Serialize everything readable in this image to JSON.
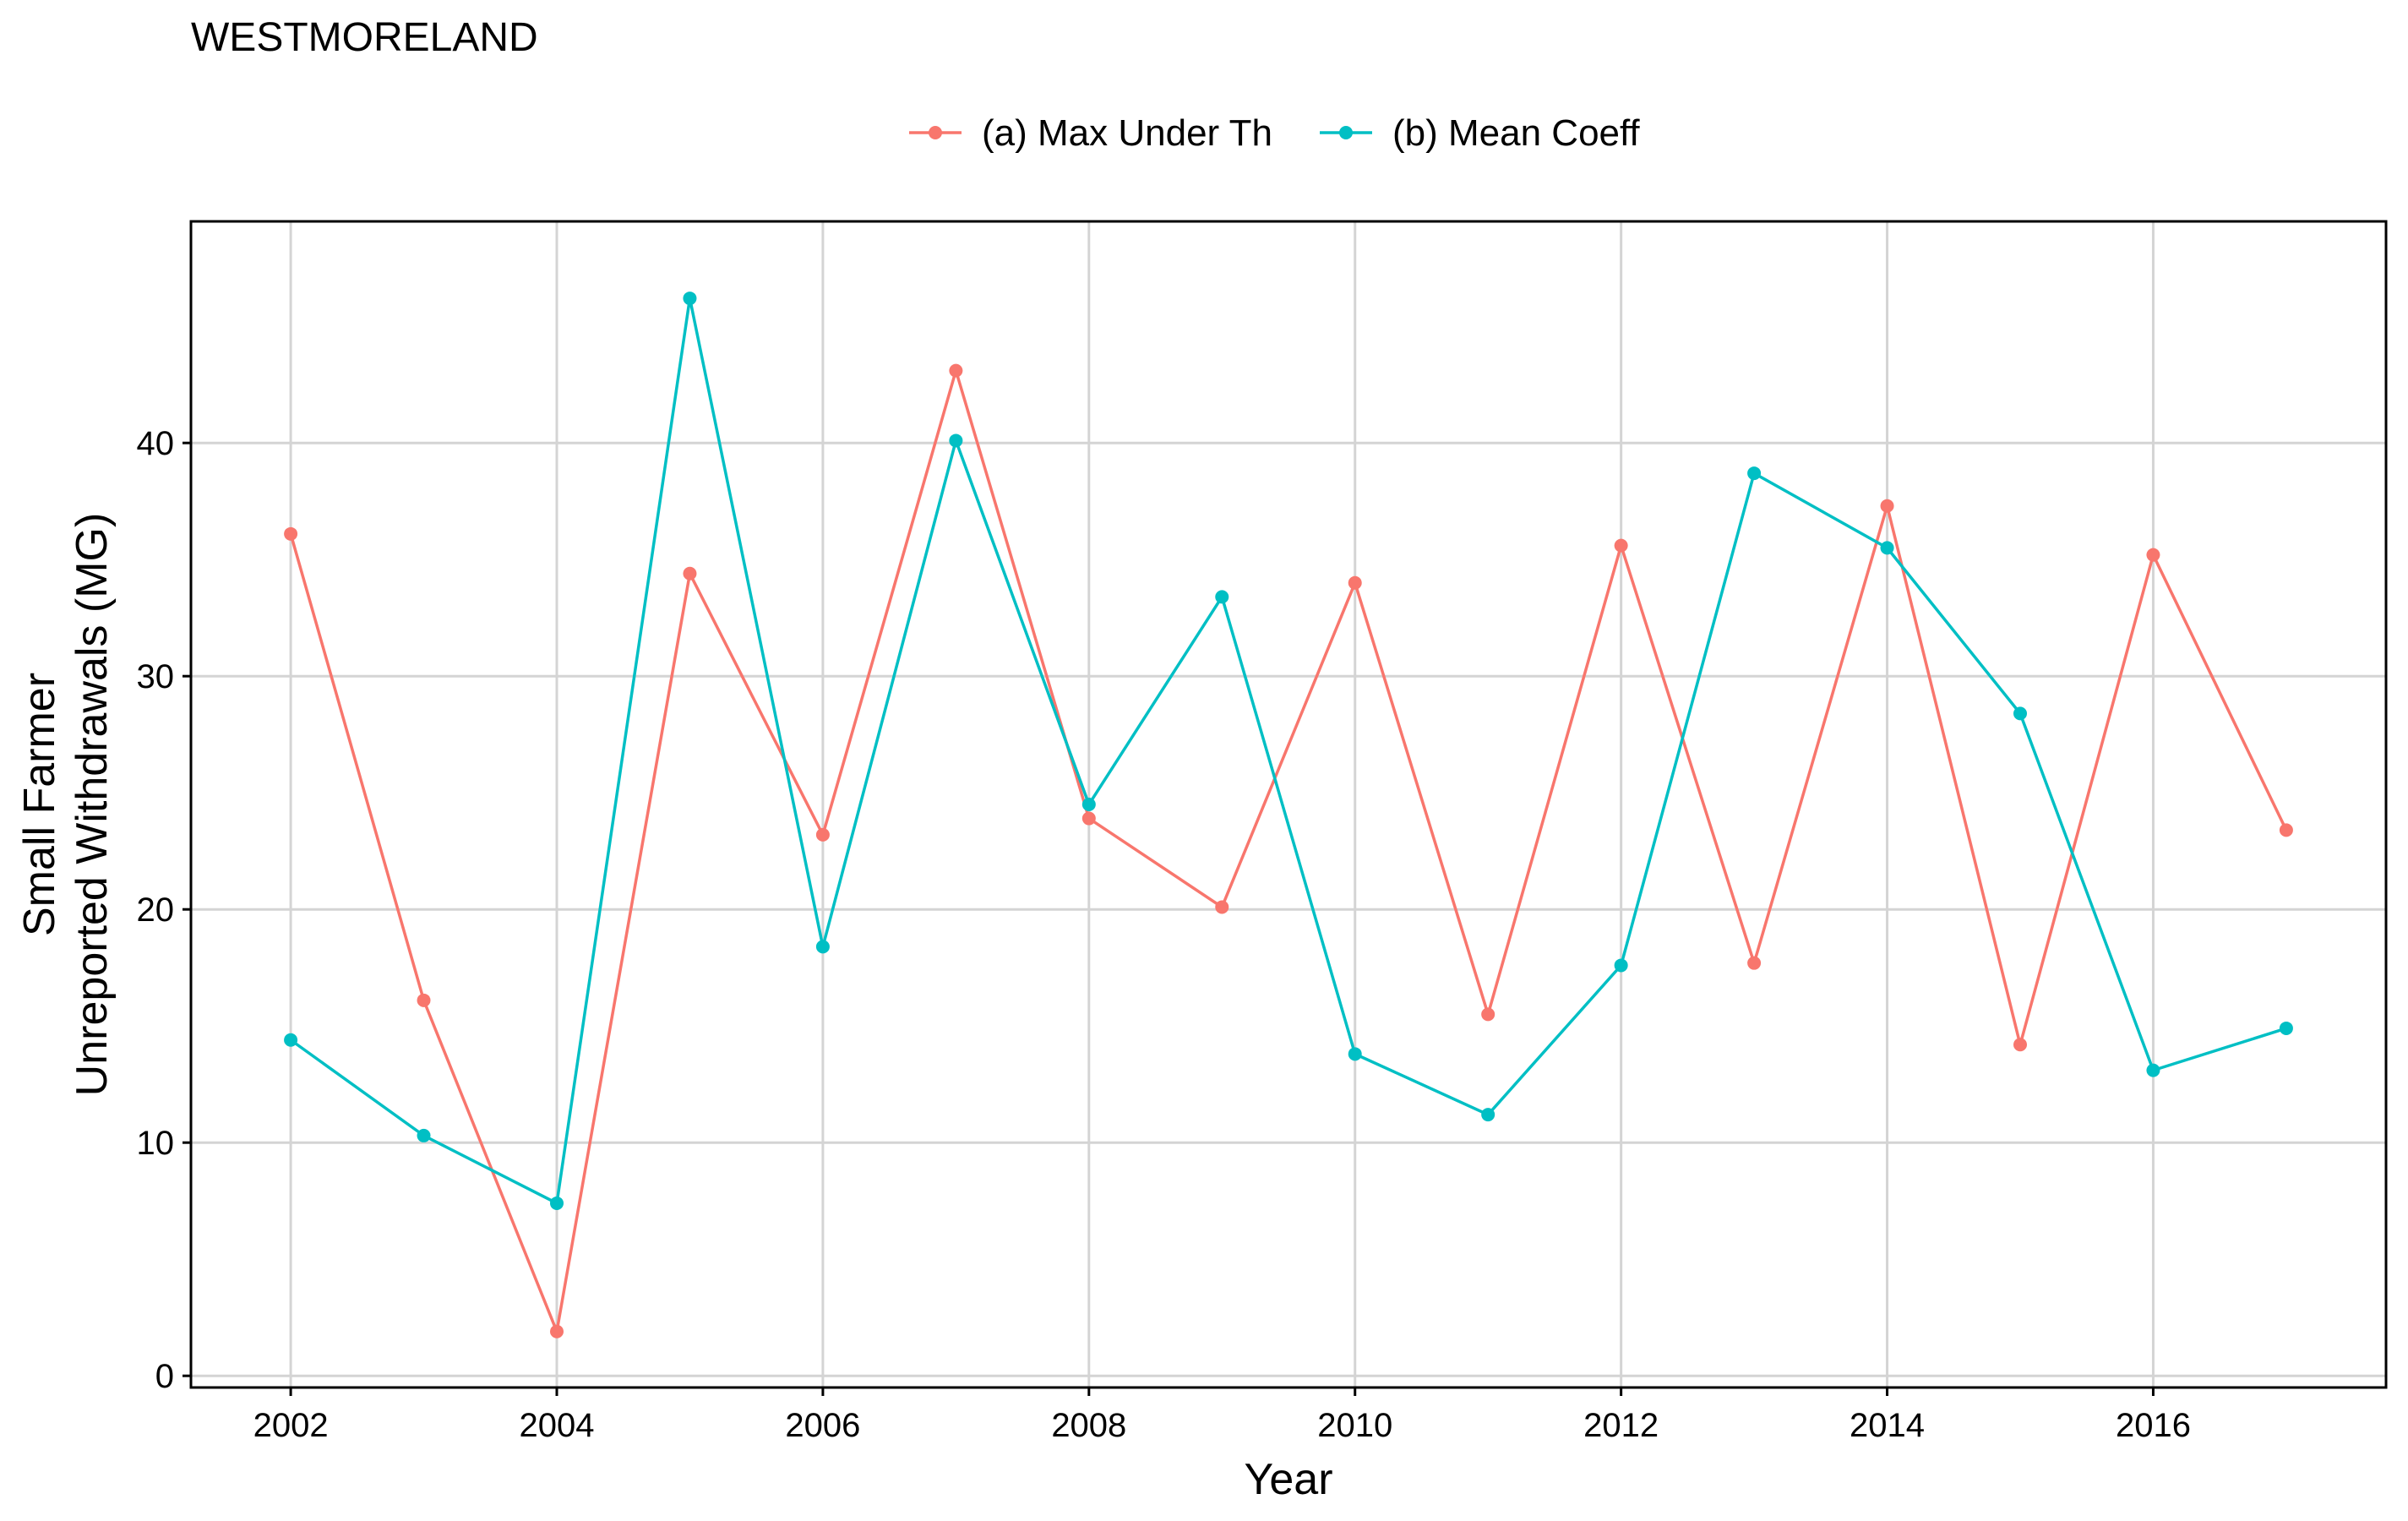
{
  "chart_data": {
    "type": "line",
    "title": "WESTMORELAND",
    "xlabel": "Year",
    "ylabel_line1": "Small Farmer",
    "ylabel_line2": "Unreported Withdrawals (MG)",
    "xlim": [
      2001.25,
      2017.75
    ],
    "ylim": [
      -0.5,
      49.5
    ],
    "x_ticks": [
      2002,
      2004,
      2006,
      2008,
      2010,
      2012,
      2014,
      2016
    ],
    "y_ticks": [
      0,
      10,
      20,
      30,
      40
    ],
    "x_tick_labels": [
      "2002",
      "2004",
      "2006",
      "2008",
      "2010",
      "2012",
      "2014",
      "2016"
    ],
    "y_tick_labels": [
      "0",
      "10",
      "20",
      "30",
      "40"
    ],
    "grid": true,
    "legend_position": "top",
    "x": [
      2002,
      2003,
      2004,
      2005,
      2006,
      2007,
      2008,
      2009,
      2010,
      2011,
      2012,
      2013,
      2014,
      2015,
      2016,
      2017
    ],
    "series": [
      {
        "name": "(a) Max Under Th",
        "color": "#F8766D",
        "values": [
          36.1,
          16.1,
          1.9,
          34.4,
          23.2,
          43.1,
          23.9,
          20.1,
          34.0,
          15.5,
          35.6,
          17.7,
          37.3,
          14.2,
          35.2,
          23.4
        ]
      },
      {
        "name": "(b) Mean Coeff",
        "color": "#00BFC4",
        "values": [
          14.4,
          10.3,
          7.4,
          46.2,
          18.4,
          40.1,
          24.5,
          33.4,
          13.8,
          11.2,
          17.6,
          38.7,
          35.5,
          28.4,
          13.1,
          14.9
        ]
      }
    ]
  }
}
